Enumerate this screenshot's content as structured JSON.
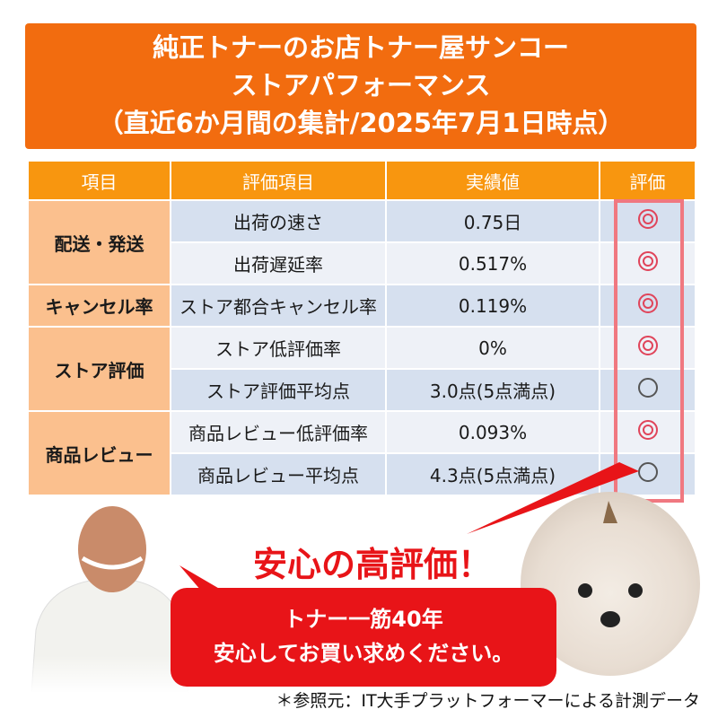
{
  "banner": {
    "line1": "純正トナーのお店トナー屋サンコー",
    "line2": "ストアパフォーマンス",
    "line3": "（直近6か月間の集計/2025年7月1日時点）"
  },
  "table": {
    "headers": [
      "項目",
      "評価項目",
      "実績値",
      "評価"
    ],
    "categories": [
      "配送・発送",
      "キャンセル率",
      "ストア評価",
      "商品レビュー"
    ],
    "rows": [
      {
        "item": "出荷の速さ",
        "value": "0.75日",
        "rating": "◎"
      },
      {
        "item": "出荷遅延率",
        "value": "0.517%",
        "rating": "◎"
      },
      {
        "item": "ストア都合キャンセル率",
        "value": "0.119%",
        "rating": "◎"
      },
      {
        "item": "ストア低評価率",
        "value": "0%",
        "rating": "◎"
      },
      {
        "item": "ストア評価平均点",
        "value": "3.0点(5点満点)",
        "rating": "○"
      },
      {
        "item": "商品レビュー低評価率",
        "value": "0.093%",
        "rating": "◎"
      },
      {
        "item": "商品レビュー平均点",
        "value": "4.3点(5点満点)",
        "rating": "○"
      }
    ],
    "colors": {
      "header": "#f8960f",
      "category": "#fbc08e",
      "highlight": "#f07880",
      "double_circle": "#e0445a"
    }
  },
  "slogan": "安心の高評価！",
  "bubble": {
    "line1": "トナー一筋40年",
    "line2": "安心してお買い求めください。"
  },
  "footnote": "＊参照元：IT大手プラットフォーマーによる計測データ",
  "images": {
    "left": "smiling-man-photo",
    "right": "white-poodle-photo"
  }
}
